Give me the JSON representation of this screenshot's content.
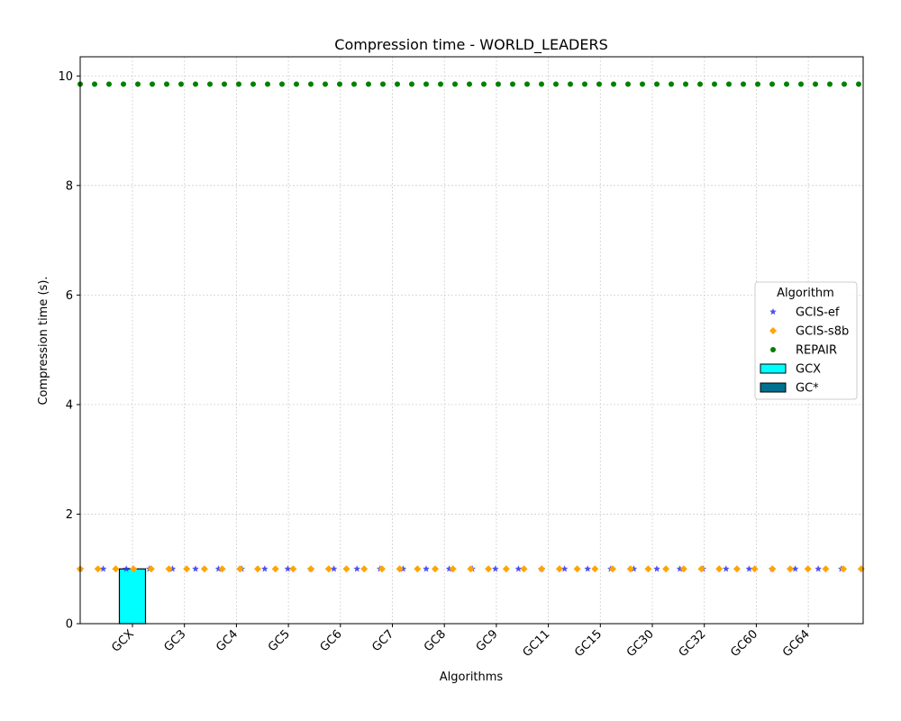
{
  "chart_data": {
    "type": "bar",
    "title": "Compression time -  WORLD_LEADERS",
    "xlabel": "Algorithms",
    "ylabel": "Compression time (s).",
    "ylim": [
      0,
      10.35
    ],
    "yticks": [
      0,
      2,
      4,
      6,
      8,
      10
    ],
    "grid": true,
    "legend_title": "Algorithm",
    "legend_position": "center-right",
    "categories": [
      "GCX",
      "GC3",
      "GC4",
      "GC5",
      "GC6",
      "GC7",
      "GC8",
      "GC9",
      "GC11",
      "GC15",
      "GC30",
      "GC32",
      "GC60",
      "GC64"
    ],
    "bar_series": [
      {
        "name": "GCX",
        "color": "#00ffff",
        "values": [
          1.0,
          0,
          0,
          0,
          0,
          0,
          0,
          0,
          0,
          0,
          0,
          0,
          0,
          0
        ]
      },
      {
        "name": "GC*",
        "color": "#00708f",
        "values": [
          0,
          0,
          0,
          0,
          0,
          0,
          0,
          0,
          0,
          0,
          0,
          0,
          0,
          0
        ]
      }
    ],
    "line_series": [
      {
        "name": "GCIS-ef",
        "marker": "star",
        "color": "#3333ee",
        "value": 1.0
      },
      {
        "name": "GCIS-s8b",
        "marker": "diamond",
        "color": "#ffa500",
        "value": 1.0
      },
      {
        "name": "REPAIR",
        "marker": "circle",
        "color": "#008000",
        "value": 9.85
      }
    ]
  }
}
